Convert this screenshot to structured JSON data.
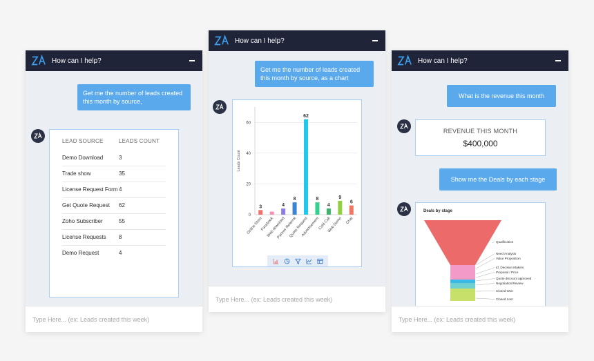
{
  "header_title": "How can I help?",
  "input_placeholder": "Type Here... (ex: Leads created this week)",
  "panel1": {
    "question": "Get me the number of leads created this month by source,",
    "table": {
      "col_source": "LEAD SOURCE",
      "col_count": "LEADS COUNT",
      "rows": [
        {
          "source": "Demo Download",
          "count": "3"
        },
        {
          "source": "Trade show",
          "count": "35"
        },
        {
          "source": "License Request Form",
          "count": "4"
        },
        {
          "source": "Get Quote Request",
          "count": "62"
        },
        {
          "source": "Zoho Subscriber",
          "count": "55"
        },
        {
          "source": "License Requests",
          "count": "8"
        },
        {
          "source": "Demo Request",
          "count": "4"
        }
      ]
    }
  },
  "panel2": {
    "question": "Get me the number of leads created this month by source, as a chart"
  },
  "chart_data": {
    "type": "bar",
    "ylabel": "Leads Count",
    "ylim": [
      0,
      70
    ],
    "yticks": [
      0,
      20,
      40,
      60
    ],
    "categories": [
      "Online Store",
      "Facebook",
      "Web download",
      "Partner Referral",
      "Quote Request",
      "Advertisement",
      "Cold Call",
      "Web Demo",
      "Chat"
    ],
    "values": [
      3,
      2,
      4,
      8,
      62,
      8,
      4,
      9,
      6
    ],
    "value_labels": [
      "3",
      "",
      "4",
      "8",
      "62",
      "8",
      "4",
      "9",
      "6"
    ],
    "colors": [
      "#f0716c",
      "#f58fb8",
      "#8d7ee6",
      "#3b83d4",
      "#20c8ee",
      "#35d08f",
      "#3db36b",
      "#8fd23e",
      "#f27760"
    ],
    "grid": true
  },
  "panel3": {
    "question1": "What is the revenue this month",
    "revenue_label": "REVENUE THIS MONTH",
    "revenue_value": "$400,000",
    "question2": "Show me the Deals by each stage",
    "funnel_title": "Deals by stage",
    "funnel_stages": [
      {
        "label": "Qualification",
        "color": "#ec6a6a"
      },
      {
        "label": "Need Analysis",
        "color": "#ec6a6a"
      },
      {
        "label": "Value Proposition",
        "color": "#f29bc9"
      },
      {
        "label": "Id. Decision Makers",
        "color": "#f29bc9"
      },
      {
        "label": "Proposal / Price",
        "color": "#f29bc9"
      },
      {
        "label": "Quote discount approved",
        "color": "#3ab9e6"
      },
      {
        "label": "Negotiation/Review",
        "color": "#6fd1cf"
      },
      {
        "label": "Closed Won",
        "color": "#c7e06a"
      },
      {
        "label": "Closed Lost",
        "color": "#c7e06a"
      }
    ]
  },
  "icons": [
    "zia-logo-icon",
    "minimize-icon",
    "bar-chart-icon",
    "pie-chart-icon",
    "funnel-icon",
    "line-chart-icon",
    "table-icon"
  ]
}
